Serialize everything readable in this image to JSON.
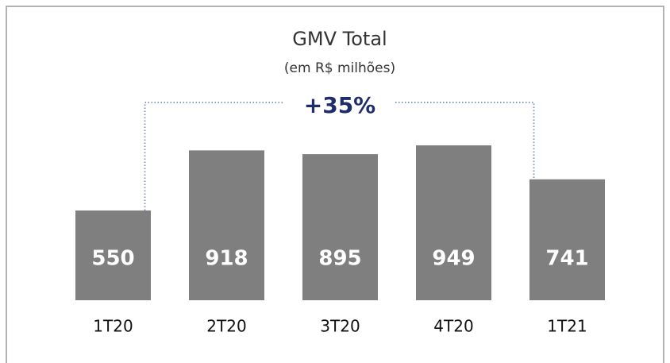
{
  "chart_data": {
    "type": "bar",
    "title": "GMV Total",
    "subtitle": "(em R$ milhões)",
    "annotation": "+35%",
    "categories": [
      "1T20",
      "2T20",
      "3T20",
      "4T20",
      "1T21"
    ],
    "values": [
      550,
      918,
      895,
      949,
      741
    ],
    "color": "#7f7f7f"
  }
}
